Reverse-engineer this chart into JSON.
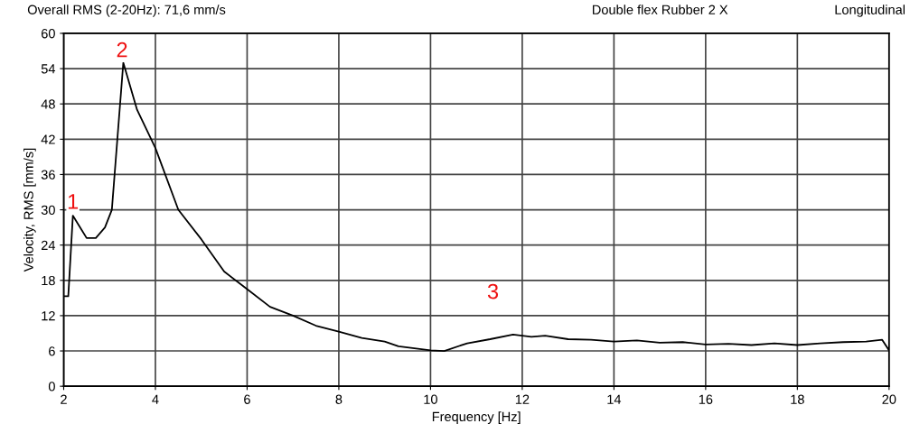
{
  "chart_data": {
    "type": "line",
    "title": "Overall RMS (2-20Hz): 71,6 mm/s",
    "xlabel": "Frequency [Hz]",
    "ylabel": "Velocity, RMS [mm/s]",
    "x": [
      2.0,
      2.1,
      2.2,
      2.5,
      2.7,
      2.9,
      3.05,
      3.2,
      3.3,
      3.6,
      4.0,
      4.5,
      5.0,
      5.5,
      6.0,
      6.5,
      7.0,
      7.5,
      8.0,
      8.5,
      9.0,
      9.3,
      10.0,
      10.3,
      10.8,
      11.3,
      11.8,
      12.2,
      12.5,
      13.0,
      13.5,
      14.0,
      14.5,
      15.0,
      15.5,
      16.0,
      16.5,
      17.0,
      17.5,
      18.0,
      18.5,
      19.0,
      19.5,
      19.85,
      20.0
    ],
    "series": [
      {
        "color": "#000000",
        "values": [
          15.3,
          15.3,
          29,
          25.2,
          25.2,
          27,
          30,
          45,
          55,
          47,
          40.5,
          30,
          25,
          19.5,
          16.5,
          13.5,
          12,
          10.3,
          9.3,
          8.2,
          7.6,
          6.8,
          6.1,
          6.0,
          7.3,
          8.0,
          8.8,
          8.4,
          8.6,
          8.0,
          7.9,
          7.6,
          7.8,
          7.4,
          7.5,
          7.1,
          7.2,
          7.0,
          7.3,
          7.0,
          7.3,
          7.5,
          7.6,
          7.9,
          6.1
        ]
      }
    ],
    "xlim": [
      2,
      20
    ],
    "xticks": [
      2,
      4,
      6,
      8,
      10,
      12,
      14,
      16,
      18,
      20
    ],
    "ylim": [
      0,
      60
    ],
    "yticks": [
      0,
      6,
      12,
      18,
      24,
      30,
      36,
      42,
      48,
      54,
      60
    ],
    "grid": true,
    "marker": "none",
    "line_style": "solid",
    "annotations": [
      "Double flex Rubber 2 X",
      "Longitudinal",
      {
        "text": "1",
        "x": 2.2,
        "y": 29
      },
      {
        "text": "2",
        "x": 3.3,
        "y": 55
      },
      {
        "text": "3",
        "x": 11.8,
        "y": 8.8
      }
    ]
  }
}
